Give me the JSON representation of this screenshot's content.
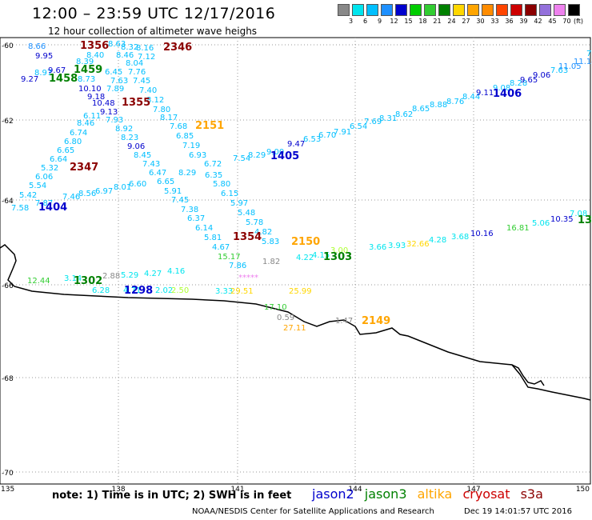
{
  "header": {
    "title": "12:00 – 23:59 UTC 12/17/2016",
    "subtitle": "12 hour collection of altimeter wave heighs"
  },
  "scale": {
    "unit_label": "(ft)",
    "ticks": [
      "3",
      "6",
      "9",
      "12",
      "15",
      "18",
      "21",
      "24",
      "27",
      "30",
      "33",
      "36",
      "39",
      "42",
      "45",
      "70"
    ],
    "colors": [
      "#888888",
      "#00e5ee",
      "#00bfff",
      "#1e90ff",
      "#0000cd",
      "#00cd00",
      "#32cd32",
      "#008000",
      "#ffd700",
      "#ffa500",
      "#ff8c00",
      "#ff4500",
      "#cd0000",
      "#8b0000",
      "#9370db",
      "#ee82ee",
      "#000000"
    ]
  },
  "axes": {
    "lat_labels": [
      "-60",
      "-62",
      "-64",
      "-66",
      "-68",
      "-70"
    ],
    "lon_labels": [
      "135",
      "138",
      "141",
      "144",
      "147",
      "150"
    ]
  },
  "map": {
    "pass_labels": [
      {
        "text": "1356",
        "color": "#8b0000"
      },
      {
        "text": "2346",
        "color": "#8b0000"
      },
      {
        "text": "1459",
        "color": "#008000"
      },
      {
        "text": "1458",
        "color": "#008000"
      },
      {
        "text": "1355",
        "color": "#8b0000"
      },
      {
        "text": "2151",
        "color": "#ffa500"
      },
      {
        "text": "1405",
        "color": "#0000cd"
      },
      {
        "text": "1406",
        "color": "#0000cd"
      },
      {
        "text": "2347",
        "color": "#8b0000"
      },
      {
        "text": "1404",
        "color": "#0000cd"
      },
      {
        "text": "1354",
        "color": "#8b0000"
      },
      {
        "text": "2150",
        "color": "#ffa500"
      },
      {
        "text": "1303",
        "color": "#008000"
      },
      {
        "text": "1302",
        "color": "#008000"
      },
      {
        "text": "1298",
        "color": "#0000cd"
      },
      {
        "text": "2149",
        "color": "#ffa500"
      },
      {
        "text": "13",
        "color": "#008000"
      }
    ],
    "values": [
      {
        "text": "8.66",
        "color": "#1e90ff"
      },
      {
        "text": "8.63",
        "color": "#00bfff"
      },
      {
        "text": "8.32",
        "color": "#00bfff"
      },
      {
        "text": "8.16",
        "color": "#00bfff"
      },
      {
        "text": "9.95",
        "color": "#0000cd"
      },
      {
        "text": "8.40",
        "color": "#00bfff"
      },
      {
        "text": "8.46",
        "color": "#00bfff"
      },
      {
        "text": "7.12",
        "color": "#00bfff"
      },
      {
        "text": "8.39",
        "color": "#00bfff"
      },
      {
        "text": "8.04",
        "color": "#00bfff"
      },
      {
        "text": "9.27",
        "color": "#0000cd"
      },
      {
        "text": "8.97",
        "color": "#00bfff"
      },
      {
        "text": "9.67",
        "color": "#0000cd"
      },
      {
        "text": "6.45",
        "color": "#00bfff"
      },
      {
        "text": "7.76",
        "color": "#00bfff"
      },
      {
        "text": "8.73",
        "color": "#00bfff"
      },
      {
        "text": "7.63",
        "color": "#00bfff"
      },
      {
        "text": "7.45",
        "color": "#00bfff"
      },
      {
        "text": "10.10",
        "color": "#0000cd"
      },
      {
        "text": "7.89",
        "color": "#00bfff"
      },
      {
        "text": "7.40",
        "color": "#00bfff"
      },
      {
        "text": "9.18",
        "color": "#0000cd"
      },
      {
        "text": "10.48",
        "color": "#0000cd"
      },
      {
        "text": "8.12",
        "color": "#00bfff"
      },
      {
        "text": "7.80",
        "color": "#00bfff"
      },
      {
        "text": "9.13",
        "color": "#0000cd"
      },
      {
        "text": "6.11",
        "color": "#00bfff"
      },
      {
        "text": "7.93",
        "color": "#00bfff"
      },
      {
        "text": "8.17",
        "color": "#00bfff"
      },
      {
        "text": "8.46",
        "color": "#00bfff"
      },
      {
        "text": "8.92",
        "color": "#00bfff"
      },
      {
        "text": "7.68",
        "color": "#00bfff"
      },
      {
        "text": "6.74",
        "color": "#00bfff"
      },
      {
        "text": "8.23",
        "color": "#00bfff"
      },
      {
        "text": "6.85",
        "color": "#00bfff"
      },
      {
        "text": "6.80",
        "color": "#00bfff"
      },
      {
        "text": "9.06",
        "color": "#0000cd"
      },
      {
        "text": "7.19",
        "color": "#00bfff"
      },
      {
        "text": "6.65",
        "color": "#00bfff"
      },
      {
        "text": "8.45",
        "color": "#00bfff"
      },
      {
        "text": "6.93",
        "color": "#00bfff"
      },
      {
        "text": "6.64",
        "color": "#00bfff"
      },
      {
        "text": "7.43",
        "color": "#00bfff"
      },
      {
        "text": "6.72",
        "color": "#00bfff"
      },
      {
        "text": "5.32",
        "color": "#00bfff"
      },
      {
        "text": "6.47",
        "color": "#00bfff"
      },
      {
        "text": "8.29",
        "color": "#00bfff"
      },
      {
        "text": "6.35",
        "color": "#00bfff"
      },
      {
        "text": "6.06",
        "color": "#00bfff"
      },
      {
        "text": "6.60",
        "color": "#00bfff"
      },
      {
        "text": "6.65",
        "color": "#00bfff"
      },
      {
        "text": "5.80",
        "color": "#00bfff"
      },
      {
        "text": "5.54",
        "color": "#00bfff"
      },
      {
        "text": "8.01",
        "color": "#00bfff"
      },
      {
        "text": "5.91",
        "color": "#00bfff"
      },
      {
        "text": "6.15",
        "color": "#00bfff"
      },
      {
        "text": "5.42",
        "color": "#00bfff"
      },
      {
        "text": "6.97",
        "color": "#00bfff"
      },
      {
        "text": "7.45",
        "color": "#00bfff"
      },
      {
        "text": "5.97",
        "color": "#00bfff"
      },
      {
        "text": "7.87",
        "color": "#00bfff"
      },
      {
        "text": "7.46",
        "color": "#00bfff"
      },
      {
        "text": "8.56",
        "color": "#00bfff"
      },
      {
        "text": "7.38",
        "color": "#00bfff"
      },
      {
        "text": "5.48",
        "color": "#00bfff"
      },
      {
        "text": "7.58",
        "color": "#00bfff"
      },
      {
        "text": "6.37",
        "color": "#00bfff"
      },
      {
        "text": "5.78",
        "color": "#00bfff"
      },
      {
        "text": "6.14",
        "color": "#00bfff"
      },
      {
        "text": "4.82",
        "color": "#00bfff"
      },
      {
        "text": "5.81",
        "color": "#00bfff"
      },
      {
        "text": "5.83",
        "color": "#00bfff"
      },
      {
        "text": "4.67",
        "color": "#00bfff"
      },
      {
        "text": "15.17",
        "color": "#32cd32"
      },
      {
        "text": "1.82",
        "color": "#888888"
      },
      {
        "text": "7.86",
        "color": "#00bfff"
      },
      {
        "text": "4.22",
        "color": "#00e5ee"
      },
      {
        "text": "4.15",
        "color": "#00e5ee"
      },
      {
        "text": "3.00",
        "color": "#adff2f"
      },
      {
        "text": "3.66",
        "color": "#00e5ee"
      },
      {
        "text": "3.93",
        "color": "#00e5ee"
      },
      {
        "text": "32.66",
        "color": "#ffd700"
      },
      {
        "text": "4.28",
        "color": "#00e5ee"
      },
      {
        "text": "3.68",
        "color": "#00e5ee"
      },
      {
        "text": "10.16",
        "color": "#0000cd"
      },
      {
        "text": "16.81",
        "color": "#32cd32"
      },
      {
        "text": "5.06",
        "color": "#00e5ee"
      },
      {
        "text": "10.35",
        "color": "#0000cd"
      },
      {
        "text": "7.08",
        "color": "#00e5ee"
      },
      {
        "text": "12.44",
        "color": "#32cd32"
      },
      {
        "text": "3.14",
        "color": "#00e5ee"
      },
      {
        "text": "2.88",
        "color": "#888888"
      },
      {
        "text": "5.29",
        "color": "#00e5ee"
      },
      {
        "text": "4.27",
        "color": "#00e5ee"
      },
      {
        "text": "4.16",
        "color": "#00e5ee"
      },
      {
        "text": "6.28",
        "color": "#00e5ee"
      },
      {
        "text": "4.71",
        "color": "#00e5ee"
      },
      {
        "text": "2.02",
        "color": "#00e5ee"
      },
      {
        "text": "2.50",
        "color": "#adff2f"
      },
      {
        "text": "3.33",
        "color": "#00e5ee"
      },
      {
        "text": "29.51",
        "color": "#ffd700"
      },
      {
        "text": "25.99",
        "color": "#ffd700"
      },
      {
        "text": "17.10",
        "color": "#32cd32"
      },
      {
        "text": "0.59",
        "color": "#888888"
      },
      {
        "text": "27.11",
        "color": "#ffa500"
      },
      {
        "text": "1.47",
        "color": "#888888"
      },
      {
        "text": "9.47",
        "color": "#0000cd"
      },
      {
        "text": "6.53",
        "color": "#00bfff"
      },
      {
        "text": "6.70",
        "color": "#00bfff"
      },
      {
        "text": "7.91",
        "color": "#00bfff"
      },
      {
        "text": "6.54",
        "color": "#00bfff"
      },
      {
        "text": "7.69",
        "color": "#00bfff"
      },
      {
        "text": "8.31",
        "color": "#00bfff"
      },
      {
        "text": "8.62",
        "color": "#00bfff"
      },
      {
        "text": "8.65",
        "color": "#00bfff"
      },
      {
        "text": "8.88",
        "color": "#00bfff"
      },
      {
        "text": "8.76",
        "color": "#00bfff"
      },
      {
        "text": "8.44",
        "color": "#00bfff"
      },
      {
        "text": "9.11",
        "color": "#0000cd"
      },
      {
        "text": "9.08",
        "color": "#00bfff"
      },
      {
        "text": "8.28",
        "color": "#00bfff"
      },
      {
        "text": "9.65",
        "color": "#0000cd"
      },
      {
        "text": "9.06",
        "color": "#0000cd"
      },
      {
        "text": "7.63",
        "color": "#00bfff"
      },
      {
        "text": "11.05",
        "color": "#1e90ff"
      },
      {
        "text": "11.14",
        "color": "#1e90ff"
      },
      {
        "text": "7",
        "color": "#00bfff"
      },
      {
        "text": "8.29",
        "color": "#00bfff"
      },
      {
        "text": "9.00",
        "color": "#00bfff"
      },
      {
        "text": "7.54",
        "color": "#00bfff"
      },
      {
        "text": "*****",
        "color": "#ee82ee"
      }
    ]
  },
  "footer": {
    "note": "note:  1) Time is in UTC;  2) SWH is in feet",
    "legend": [
      {
        "text": "jason2",
        "color": "#0000cd"
      },
      {
        "text": "jason3",
        "color": "#008000"
      },
      {
        "text": "altika",
        "color": "#ffa500"
      },
      {
        "text": "cryosat",
        "color": "#cd0000"
      },
      {
        "text": "s3a",
        "color": "#8b0000"
      }
    ],
    "credit": "NOAA/NESDIS Center for Satellite Applications and Research",
    "timestamp": "Dec 19 14:01:57 UTC 2016"
  }
}
